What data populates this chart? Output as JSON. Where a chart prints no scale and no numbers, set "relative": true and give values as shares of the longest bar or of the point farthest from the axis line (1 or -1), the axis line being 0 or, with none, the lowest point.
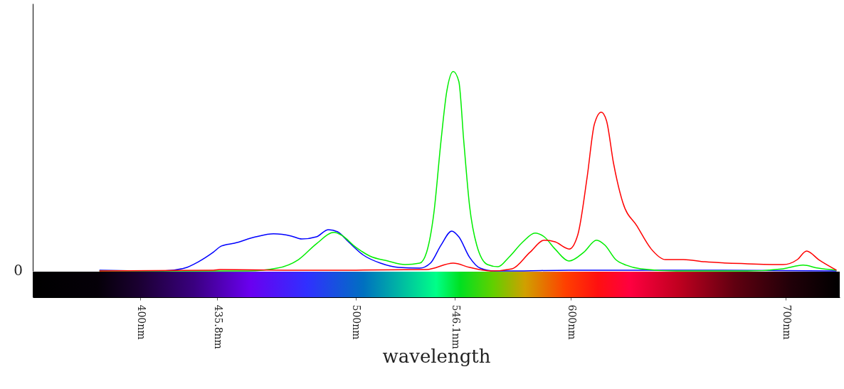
{
  "chart_data": {
    "type": "line",
    "xlabel": "wavelength",
    "relative": true,
    "annotations": [
      "0"
    ],
    "xlim": [
      350,
      725
    ],
    "xticks": [
      {
        "value": 400,
        "label": "400nm"
      },
      {
        "value": 435.8,
        "label": "435.8nm"
      },
      {
        "value": 500,
        "label": "500nm"
      },
      {
        "value": 546.1,
        "label": "546.1nm"
      },
      {
        "value": 600,
        "label": "600nm"
      },
      {
        "value": 700,
        "label": "700nm"
      }
    ],
    "series": [
      {
        "color": "#0000ff",
        "x": [
          381,
          410.6,
          420.5,
          427,
          433.8,
          437.7,
          443.7,
          453.6,
          461.9,
          470.2,
          475,
          481.8,
          487.4,
          491.7,
          496.7,
          503.3,
          511.6,
          519.9,
          529.8,
          534.8,
          539.7,
          544.7,
          548,
          553,
          557.9,
          564.6,
          572.8,
          599,
          665,
          723.5
        ],
        "values": [
          0.004,
          0,
          0.014,
          0.046,
          0.093,
          0.125,
          0.139,
          0.171,
          0.186,
          0.175,
          0.16,
          0.171,
          0.207,
          0.196,
          0.146,
          0.082,
          0.039,
          0.018,
          0.014,
          0.039,
          0.129,
          0.2,
          0.171,
          0.068,
          0.014,
          0,
          0,
          0.004,
          0.004,
          0
        ]
      },
      {
        "color": "#00ee00",
        "x": [
          381,
          434,
          450,
          463.6,
          473.5,
          481.8,
          490,
          493.4,
          500,
          506.6,
          515,
          523,
          529.8,
          533,
          536.4,
          539.7,
          542.4,
          545.4,
          548,
          550.3,
          553,
          556.3,
          561.3,
          566.2,
          571.2,
          577.8,
          583.4,
          587.7,
          592.7,
          599.3,
          606,
          612,
          615.9,
          620.9,
          625.8,
          632.5,
          649,
          682,
          698.7,
          708,
          715,
          723.5
        ],
        "values": [
          0,
          0,
          0,
          0.014,
          0.057,
          0.136,
          0.193,
          0.18,
          0.12,
          0.075,
          0.05,
          0.032,
          0.039,
          0.093,
          0.29,
          0.65,
          0.9,
          1,
          0.95,
          0.65,
          0.325,
          0.13,
          0.032,
          0.021,
          0.068,
          0.146,
          0.19,
          0.171,
          0.11,
          0.05,
          0.093,
          0.154,
          0.129,
          0.057,
          0.029,
          0.011,
          0,
          0,
          0.011,
          0.029,
          0.014,
          0.004
        ]
      },
      {
        "color": "#ff0000",
        "x": [
          381,
          434,
          437,
          467,
          500,
          533,
          545.4,
          553,
          563,
          572.8,
          581,
          587.7,
          592.7,
          599.3,
          603.3,
          607.6,
          611,
          614.2,
          616.6,
          619.9,
          624.2,
          630.8,
          637.4,
          644,
          652.3,
          662.3,
          682.1,
          698.7,
          705.3,
          709.6,
          715.2,
          723.5
        ],
        "values": [
          0,
          0.004,
          0.007,
          0.004,
          0.004,
          0.007,
          0.039,
          0.018,
          0,
          0.011,
          0.093,
          0.154,
          0.146,
          0.11,
          0.182,
          0.468,
          0.736,
          0.796,
          0.754,
          0.539,
          0.343,
          0.225,
          0.11,
          0.057,
          0.057,
          0.046,
          0.036,
          0.032,
          0.057,
          0.1,
          0.057,
          0.004
        ]
      }
    ]
  }
}
